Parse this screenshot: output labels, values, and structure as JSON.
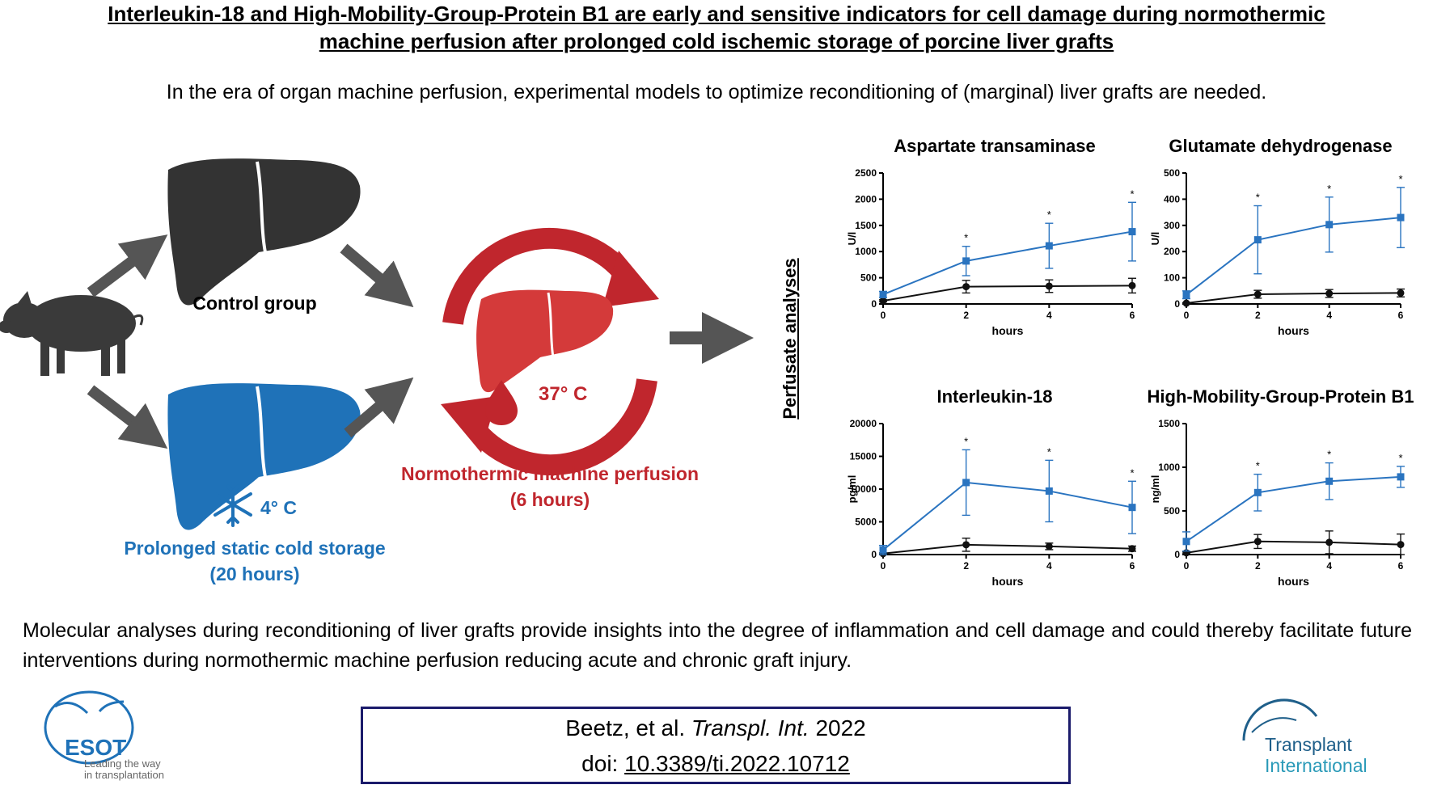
{
  "title": {
    "line1": "Interleukin-18 and High-Mobility-Group-Protein B1 are early and sensitive indicators for cell damage during normothermic",
    "line2": "machine perfusion after prolonged cold ischemic storage of porcine liver grafts"
  },
  "intro": "In the era of organ machine perfusion, experimental models to optimize reconditioning of (marginal) liver grafts are needed.",
  "diagram": {
    "control_label": "Control group",
    "cold_temp": "4° C",
    "cold_label_1": "Prolonged static cold storage",
    "cold_label_2": "(20 hours)",
    "nmp_temp": "37° C",
    "nmp_label_1": "Normothermic machine perfusion",
    "nmp_label_2": "(6 hours)",
    "perfusate_label": "Perfusate analyses"
  },
  "colors": {
    "cold": "#1f72b8",
    "warm": "#c0262d",
    "control": "#333333",
    "cite_border": "#1b1b6b",
    "series_blue": "#2a74c0"
  },
  "chart_data": [
    {
      "type": "line",
      "title": "Aspartate transaminase",
      "xlabel": "hours",
      "ylabel": "U/l",
      "x": [
        0,
        2,
        4,
        6
      ],
      "xticks": [
        "0",
        "2",
        "4",
        "6"
      ],
      "yticks": [
        "0",
        "500",
        "1000",
        "1500",
        "2000",
        "2500"
      ],
      "ylim": [
        0,
        2500
      ],
      "series": [
        {
          "name": "Prolonged static cold storage",
          "color": "#2a74c0",
          "values": [
            180,
            820,
            1110,
            1380
          ],
          "err": [
            60,
            280,
            430,
            560
          ]
        },
        {
          "name": "Control group",
          "color": "#111111",
          "values": [
            60,
            330,
            340,
            350
          ],
          "err": [
            20,
            120,
            120,
            140
          ]
        }
      ],
      "significance": [
        "",
        "*",
        "*",
        "*"
      ]
    },
    {
      "type": "line",
      "title": "Glutamate dehydrogenase",
      "xlabel": "hours",
      "ylabel": "U/l",
      "x": [
        0,
        2,
        4,
        6
      ],
      "xticks": [
        "0",
        "2",
        "4",
        "6"
      ],
      "yticks": [
        "0",
        "100",
        "200",
        "300",
        "400",
        "500"
      ],
      "ylim": [
        0,
        500
      ],
      "series": [
        {
          "name": "Prolonged static cold storage",
          "color": "#2a74c0",
          "values": [
            35,
            245,
            303,
            330
          ],
          "err": [
            15,
            130,
            105,
            115
          ]
        },
        {
          "name": "Control group",
          "color": "#111111",
          "values": [
            3,
            37,
            40,
            42
          ],
          "err": [
            2,
            15,
            15,
            15
          ]
        }
      ],
      "significance": [
        "",
        "*",
        "*",
        "*"
      ]
    },
    {
      "type": "line",
      "title": "Interleukin-18",
      "xlabel": "hours",
      "ylabel": "pg/ml",
      "x": [
        0,
        2,
        4,
        6
      ],
      "xticks": [
        "0",
        "2",
        "4",
        "6"
      ],
      "yticks": [
        "0",
        "5000",
        "10000",
        "15000",
        "20000"
      ],
      "ylim": [
        0,
        20000
      ],
      "series": [
        {
          "name": "Prolonged static cold storage",
          "color": "#2a74c0",
          "values": [
            700,
            11000,
            9700,
            7200
          ],
          "err": [
            700,
            5000,
            4700,
            4000
          ]
        },
        {
          "name": "Control group",
          "color": "#111111",
          "values": [
            150,
            1500,
            1250,
            900
          ],
          "err": [
            100,
            1000,
            500,
            400
          ]
        }
      ],
      "significance": [
        "",
        "*",
        "*",
        "*"
      ]
    },
    {
      "type": "line",
      "title": "High-Mobility-Group-Protein B1",
      "xlabel": "hours",
      "ylabel": "ng/ml",
      "x": [
        0,
        2,
        4,
        6
      ],
      "xticks": [
        "0",
        "2",
        "4",
        "6"
      ],
      "yticks": [
        "0",
        "500",
        "1000",
        "1500"
      ],
      "ylim": [
        0,
        1500
      ],
      "series": [
        {
          "name": "Prolonged static cold storage",
          "color": "#2a74c0",
          "values": [
            150,
            710,
            840,
            890
          ],
          "err": [
            110,
            210,
            210,
            120
          ]
        },
        {
          "name": "Control group",
          "color": "#111111",
          "values": [
            20,
            150,
            140,
            115
          ],
          "err": [
            10,
            80,
            130,
            120
          ]
        }
      ],
      "significance": [
        "",
        "*",
        "*",
        "*"
      ]
    }
  ],
  "conclusion": "Molecular analyses during reconditioning of liver grafts provide insights into the degree of inflammation and cell damage and could thereby facilitate future interventions during normothermic machine perfusion reducing acute and chronic graft injury.",
  "citation": {
    "authors": "Beetz, et al.",
    "journal": "Transpl. Int.",
    "year": "2022",
    "doi_prefix": "doi:",
    "doi": "10.3389/ti.2022.10712"
  },
  "logos": {
    "esot_name": "ESOT",
    "esot_tag_1": "Leading the way",
    "esot_tag_2": "in transplantation",
    "ti_line1": "Transplant",
    "ti_line2": "International"
  }
}
